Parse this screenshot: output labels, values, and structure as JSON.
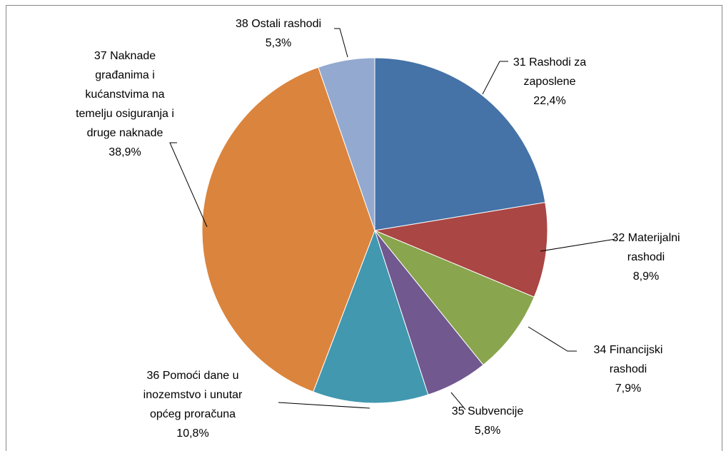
{
  "chart_data": {
    "type": "pie",
    "categories": [
      "31 Rashodi za zaposlene",
      "32 Materijalni rashodi",
      "34 Financijski rashodi",
      "35 Subvencije",
      "36 Pomoći dane u inozemstvo i unutar općeg proračuna",
      "37 Naknade građanima i kućanstvima na temelju osiguranja i druge naknade",
      "38 Ostali rashodi"
    ],
    "values": [
      22.4,
      8.9,
      7.9,
      5.8,
      10.8,
      38.9,
      5.3
    ],
    "value_labels": [
      "22,4%",
      "8,9%",
      "7,9%",
      "5,8%",
      "10,8%",
      "38,9%",
      "5,3%"
    ],
    "colors": [
      "#4572a7",
      "#aa4643",
      "#89a54e",
      "#71588f",
      "#4198af",
      "#db843d",
      "#93a9cf"
    ]
  }
}
